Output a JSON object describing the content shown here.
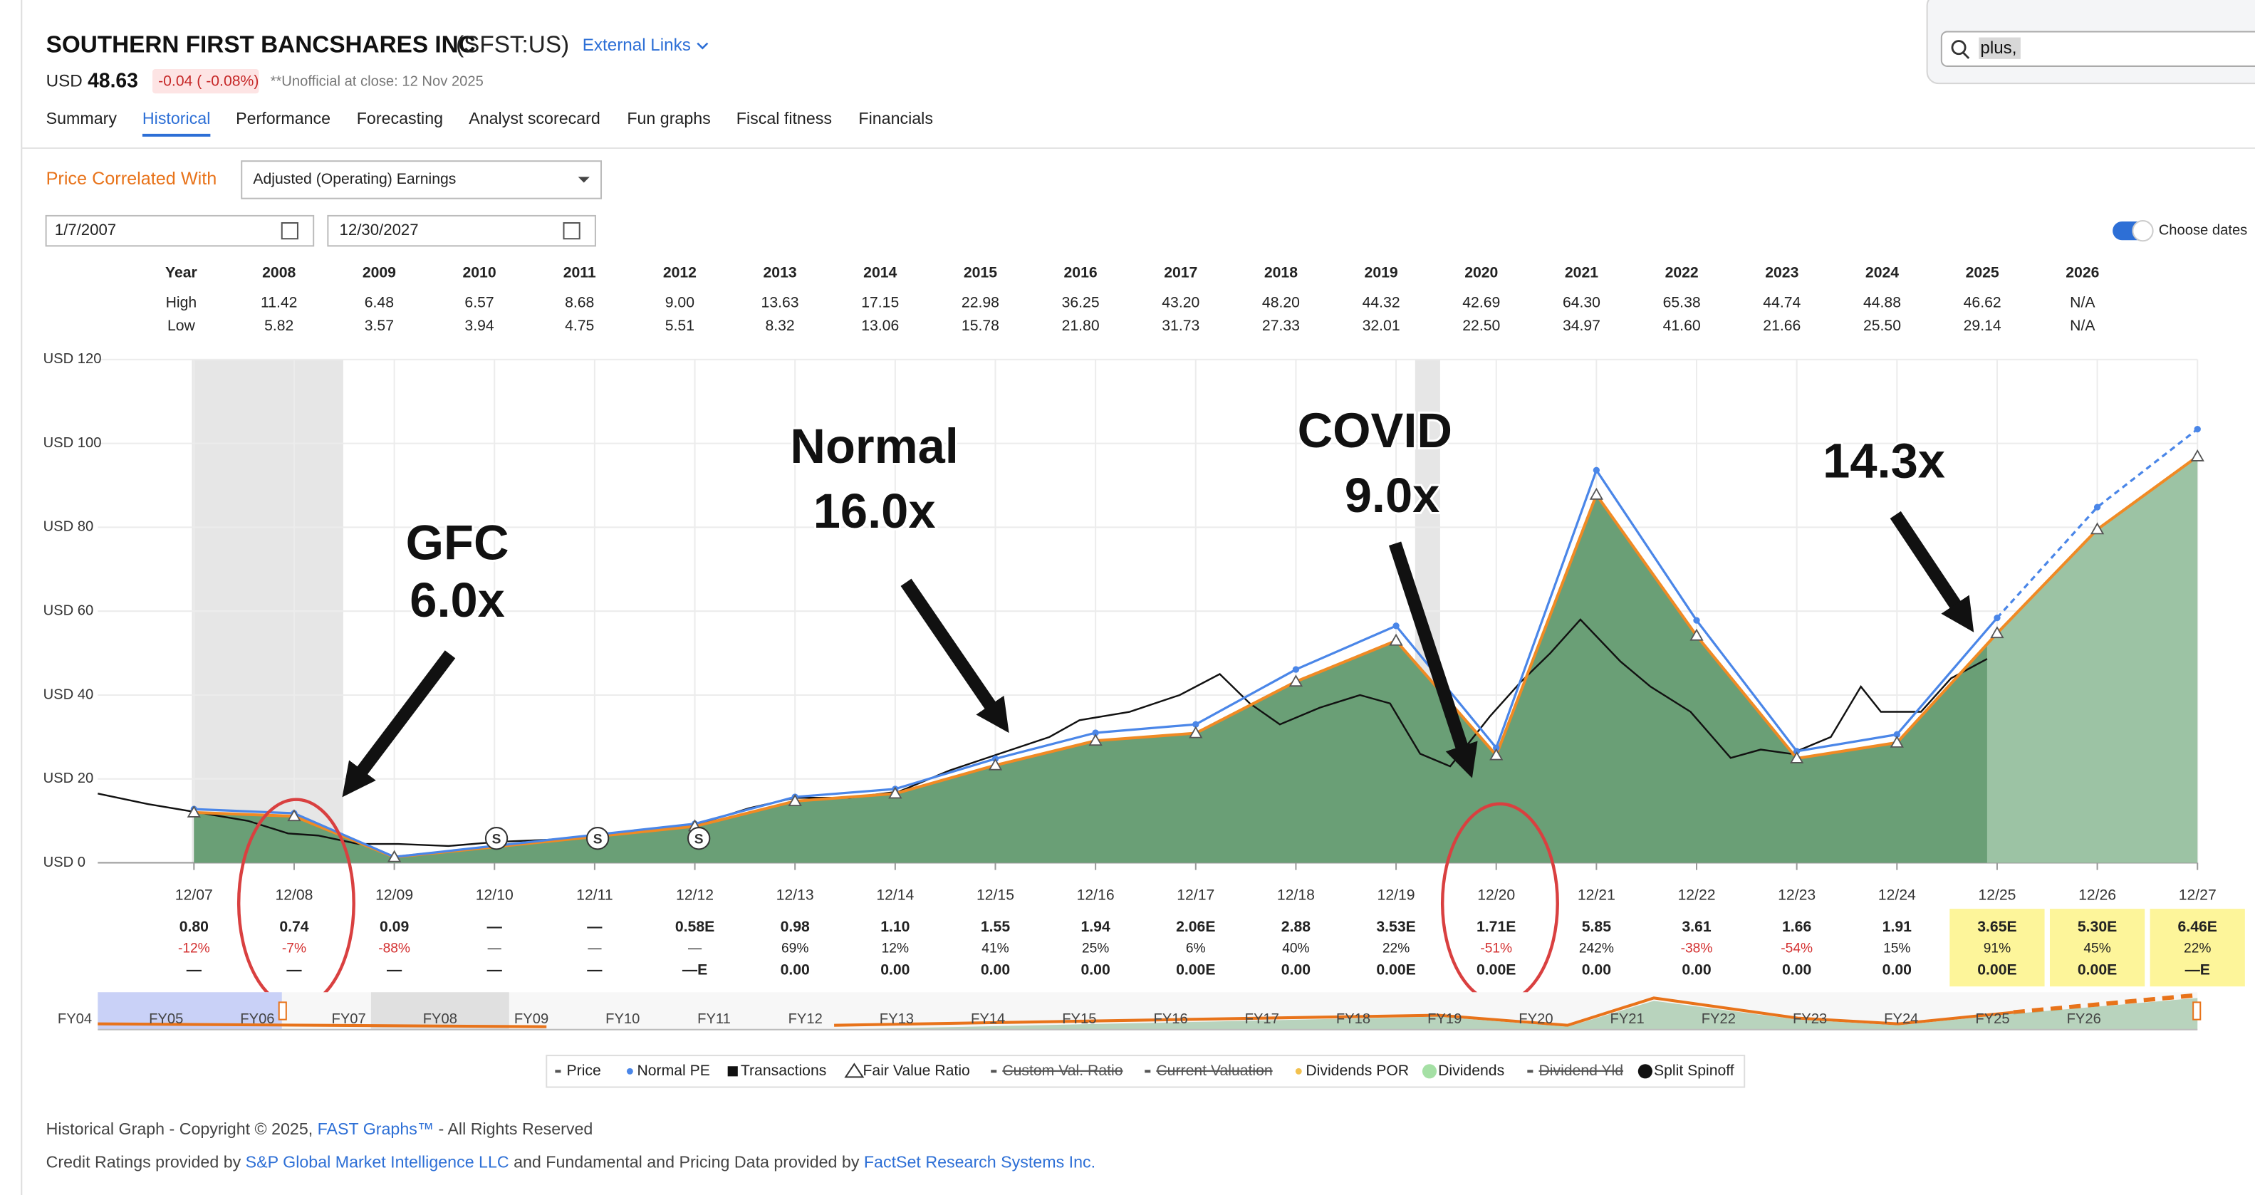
{
  "header": {
    "company": "SOUTHERN FIRST BANCSHARES INC",
    "ticker": "(SFST:US)",
    "external_links": "External Links",
    "currency": "USD",
    "price": "48.63",
    "change": "-0.04 ( -0.08%)",
    "close_note": "**Unofficial at close: 12 Nov 2025"
  },
  "search": {
    "query": "plus,"
  },
  "tabs": [
    "Summary",
    "Historical",
    "Performance",
    "Forecasting",
    "Analyst scorecard",
    "Fun graphs",
    "Fiscal fitness",
    "Financials"
  ],
  "controls": {
    "correlated_label": "Price Correlated With",
    "correlated_value": "Adjusted (Operating) Earnings",
    "start_date": "1/7/2007",
    "end_date": "12/30/2027",
    "choose_dates": "Choose dates"
  },
  "year_table": {
    "headers": [
      "Year",
      "High",
      "Low"
    ],
    "years": [
      "2008",
      "2009",
      "2010",
      "2011",
      "2012",
      "2013",
      "2014",
      "2015",
      "2016",
      "2017",
      "2018",
      "2019",
      "2020",
      "2021",
      "2022",
      "2023",
      "2024",
      "2025",
      "2026"
    ],
    "high": [
      "11.42",
      "6.48",
      "6.57",
      "8.68",
      "9.00",
      "13.63",
      "17.15",
      "22.98",
      "36.25",
      "43.20",
      "48.20",
      "44.32",
      "42.69",
      "64.30",
      "65.38",
      "44.74",
      "44.88",
      "46.62",
      "N/A"
    ],
    "low": [
      "5.82",
      "3.57",
      "3.94",
      "4.75",
      "5.51",
      "8.32",
      "13.06",
      "15.78",
      "21.80",
      "31.73",
      "27.33",
      "32.01",
      "22.50",
      "34.97",
      "41.60",
      "21.66",
      "25.50",
      "29.14",
      "N/A"
    ]
  },
  "chart_data": {
    "type": "line",
    "xlim": [
      2007.0,
      2027.96
    ],
    "ylim": [
      0,
      120
    ],
    "yticks": [
      {
        "value": 0,
        "label": "USD 0"
      },
      {
        "value": 20,
        "label": "USD 20"
      },
      {
        "value": 40,
        "label": "USD 40"
      },
      {
        "value": 60,
        "label": "USD 60"
      },
      {
        "value": 80,
        "label": "USD 80"
      },
      {
        "value": 100,
        "label": "USD 100"
      },
      {
        "value": 120,
        "label": "USD 120"
      }
    ],
    "xticks": [
      {
        "value": 2007.96,
        "label": "12/07"
      },
      {
        "value": 2008.96,
        "label": "12/08"
      },
      {
        "value": 2009.96,
        "label": "12/09"
      },
      {
        "value": 2010.96,
        "label": "12/10"
      },
      {
        "value": 2011.96,
        "label": "12/11"
      },
      {
        "value": 2012.96,
        "label": "12/12"
      },
      {
        "value": 2013.96,
        "label": "12/13"
      },
      {
        "value": 2014.96,
        "label": "12/14"
      },
      {
        "value": 2015.96,
        "label": "12/15"
      },
      {
        "value": 2016.96,
        "label": "12/16"
      },
      {
        "value": 2017.96,
        "label": "12/17"
      },
      {
        "value": 2018.96,
        "label": "12/18"
      },
      {
        "value": 2019.96,
        "label": "12/19"
      },
      {
        "value": 2020.96,
        "label": "12/20"
      },
      {
        "value": 2021.96,
        "label": "12/21"
      },
      {
        "value": 2022.96,
        "label": "12/22"
      },
      {
        "value": 2023.96,
        "label": "12/23"
      },
      {
        "value": 2024.96,
        "label": "12/24"
      },
      {
        "value": 2025.96,
        "label": "12/25"
      },
      {
        "value": 2026.96,
        "label": "12/26"
      },
      {
        "value": 2027.96,
        "label": "12/27"
      }
    ],
    "grid": true,
    "recessions": [
      [
        2007.94,
        2009.45
      ],
      [
        2020.15,
        2020.4
      ]
    ],
    "series": [
      {
        "name": "Price",
        "color": "#111111",
        "x": [
          2007.0,
          2007.5,
          2008.0,
          2008.5,
          2008.9,
          2009.2,
          2009.6,
          2010.0,
          2010.5,
          2011.0,
          2011.5,
          2012.0,
          2012.5,
          2012.96,
          2013.5,
          2013.96,
          2014.5,
          2015.0,
          2015.5,
          2016.0,
          2016.5,
          2016.8,
          2017.3,
          2017.8,
          2018.2,
          2018.5,
          2018.8,
          2019.2,
          2019.6,
          2019.9,
          2020.2,
          2020.5,
          2020.9,
          2021.2,
          2021.5,
          2021.8,
          2022.2,
          2022.5,
          2022.9,
          2023.3,
          2023.6,
          2023.9,
          2024.3,
          2024.6,
          2024.8,
          2025.2,
          2025.5,
          2025.86
        ],
        "values": [
          16.5,
          14,
          12,
          10,
          7,
          6.5,
          4.5,
          4.5,
          4,
          5,
          5.5,
          6.5,
          8,
          9,
          13,
          15.5,
          15.5,
          17,
          22,
          26,
          30,
          34,
          36,
          40,
          45,
          38,
          33,
          37,
          40,
          38,
          26,
          23,
          35,
          43,
          50,
          58,
          48,
          42,
          36,
          25,
          27,
          26,
          30,
          42,
          36,
          36,
          44,
          48.63
        ]
      },
      {
        "name": "Normal PE",
        "color": "#4a86e8",
        "x": [
          2007.96,
          2008.96,
          2009.96,
          2012.96,
          2013.96,
          2014.96,
          2015.96,
          2016.96,
          2017.96,
          2018.96,
          2019.96,
          2020.96,
          2021.96,
          2022.96,
          2023.96,
          2024.96,
          2025.96,
          2026.96,
          2027.96
        ],
        "values": [
          12.8,
          11.8,
          1.4,
          9.3,
          15.7,
          17.6,
          24.8,
          31,
          33,
          46.1,
          56.5,
          27.4,
          93.6,
          57.8,
          26.6,
          30.6,
          58.4,
          84.8,
          103.4
        ]
      },
      {
        "name": "Fair Value Ratio",
        "color": "#f08a24",
        "x": [
          2007.96,
          2008.96,
          2009.96,
          2012.96,
          2013.96,
          2014.96,
          2015.96,
          2016.96,
          2017.96,
          2018.96,
          2019.96,
          2020.96,
          2021.96,
          2022.96,
          2023.96,
          2024.96,
          2025.96,
          2026.96,
          2027.96
        ],
        "values": [
          12,
          11.1,
          1.35,
          8.7,
          14.7,
          16.5,
          23.25,
          29.1,
          30.9,
          43.2,
          52.95,
          25.65,
          87.75,
          54.15,
          24.9,
          28.65,
          54.75,
          79.5,
          96.9
        ]
      }
    ],
    "splits": [
      {
        "x": 2010.98,
        "label": "S"
      },
      {
        "x": 2011.99,
        "label": "S"
      },
      {
        "x": 2013.0,
        "label": "S"
      }
    ],
    "annotations": [
      {
        "lines": [
          "GFC",
          "6.0x"
        ]
      },
      {
        "lines": [
          "Normal",
          "16.0x"
        ]
      },
      {
        "lines": [
          "COVID",
          "9.0x"
        ]
      },
      {
        "lines": [
          "14.3x"
        ]
      }
    ]
  },
  "eps_table": {
    "eps": [
      "0.80",
      "0.74",
      "0.09",
      "—",
      "—",
      "0.58E",
      "0.98",
      "1.10",
      "1.55",
      "1.94",
      "2.06E",
      "2.88",
      "3.53E",
      "1.71E",
      "5.85",
      "3.61",
      "1.66",
      "1.91",
      "3.65E",
      "5.30E",
      "6.46E"
    ],
    "change": [
      "-12%",
      "-7%",
      "-88%",
      "—",
      "—",
      "—",
      "69%",
      "12%",
      "41%",
      "25%",
      "6%",
      "40%",
      "22%",
      "-51%",
      "242%",
      "-38%",
      "-54%",
      "15%",
      "91%",
      "45%",
      "22%"
    ],
    "dividends": [
      "—",
      "—",
      "—",
      "—",
      "—",
      "—E",
      "0.00",
      "0.00",
      "0.00",
      "0.00",
      "0.00E",
      "0.00",
      "0.00E",
      "0.00E",
      "0.00",
      "0.00",
      "0.00",
      "0.00",
      "0.00E",
      "0.00E",
      "—E"
    ]
  },
  "navigator": {
    "labels": [
      "FY04",
      "FY05",
      "FY06",
      "FY07",
      "FY08",
      "FY09",
      "FY10",
      "FY11",
      "FY12",
      "FY13",
      "FY14",
      "FY15",
      "FY16",
      "FY17",
      "FY18",
      "FY19",
      "FY20",
      "FY21",
      "FY22",
      "FY23",
      "FY24",
      "FY25",
      "FY26"
    ]
  },
  "legend": [
    "Price",
    "Normal PE",
    "Transactions",
    "Fair Value Ratio",
    "Custom Val. Ratio",
    "Current Valuation",
    "Dividends POR",
    "Dividends",
    "Dividend Yld",
    "Split Spinoff"
  ],
  "footer": {
    "line1": [
      "Historical Graph - Copyright © 2025, ",
      "FAST Graphs™",
      " - All Rights Reserved"
    ],
    "line2": [
      "Credit Ratings provided by ",
      "S&P Global Market Intelligence LLC",
      " and Fundamental and Pricing Data provided by ",
      "FactSet Research Systems Inc."
    ]
  }
}
